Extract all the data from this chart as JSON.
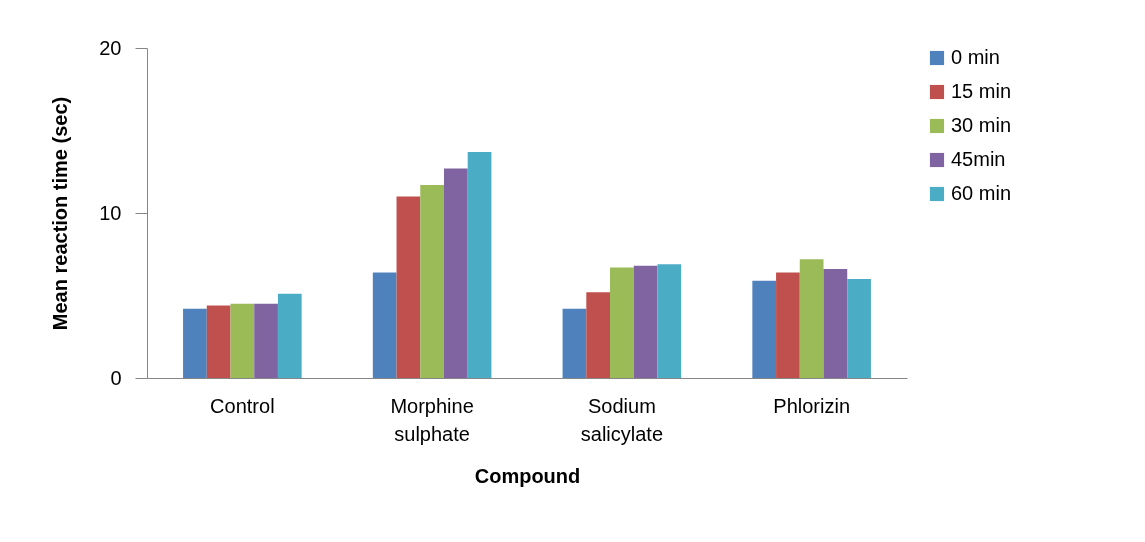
{
  "chart_data": {
    "type": "bar",
    "xlabel": "Compound",
    "ylabel": "Mean reaction time (sec)",
    "categories": [
      "Control",
      "Morphine sulphate",
      "Sodium salicylate",
      "Phlorizin"
    ],
    "series": [
      {
        "name": "0 min",
        "color": "#4f81bd",
        "values": [
          4.2,
          6.4,
          4.2,
          5.9
        ]
      },
      {
        "name": "15 min",
        "color": "#c0504d",
        "values": [
          4.4,
          11.0,
          5.2,
          6.4
        ]
      },
      {
        "name": "30 min",
        "color": "#9bbb59",
        "values": [
          4.5,
          11.7,
          6.7,
          7.2
        ]
      },
      {
        "name": "45min",
        "color": "#8064a2",
        "values": [
          4.5,
          12.7,
          6.8,
          6.6
        ]
      },
      {
        "name": "60 min",
        "color": "#4bacc6",
        "values": [
          5.1,
          13.7,
          6.9,
          6.0
        ]
      }
    ],
    "ylim": [
      0,
      20
    ],
    "yticks": [
      0,
      10,
      20
    ],
    "grid": false,
    "legend": "right"
  }
}
